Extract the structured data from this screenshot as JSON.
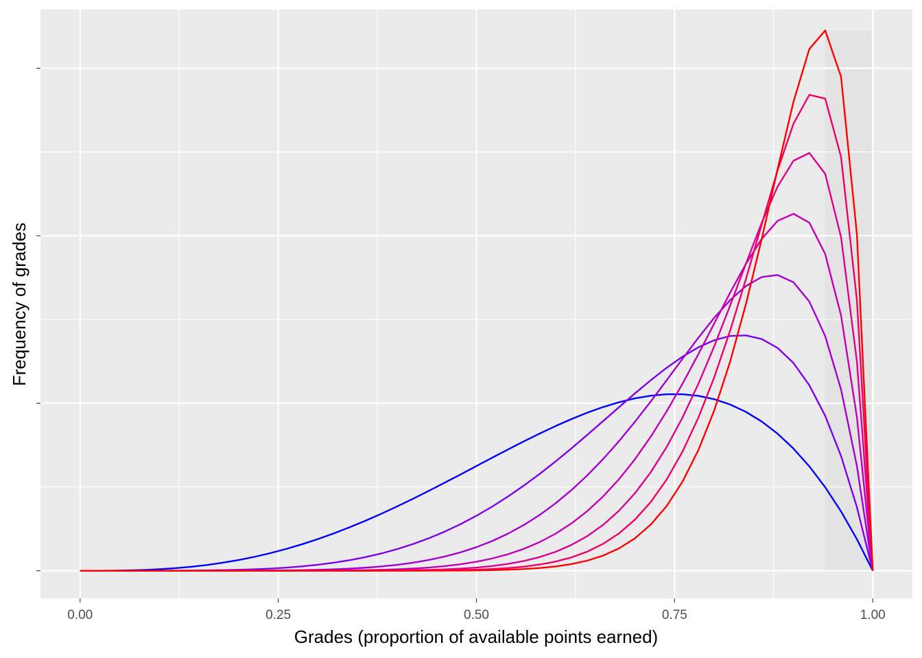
{
  "chart_data": {
    "type": "line",
    "title": "",
    "xlabel": "Grades (proportion of available points earned)",
    "ylabel": "Frequency of grades",
    "xlim": [
      -0.05,
      1.05
    ],
    "ylim": [
      -0.33,
      6.7
    ],
    "x_ticks": [
      0.0,
      0.25,
      0.5,
      0.75,
      1.0
    ],
    "x_tick_labels": [
      "0.00",
      "0.25",
      "0.50",
      "0.75",
      "1.00"
    ],
    "y_tick_labels_shown": false,
    "grid": true,
    "background": "#ebebeb",
    "highlight_band": {
      "x_start": 0.94,
      "x_end": 1.0,
      "color": "#e3e3e3"
    },
    "x_resolution": 0.02,
    "series": [
      {
        "distribution": "beta",
        "alpha": 4,
        "beta": 2,
        "color": "#0000ff"
      },
      {
        "distribution": "beta",
        "alpha": 6,
        "beta": 2,
        "color": "#7f00ea"
      },
      {
        "distribution": "beta",
        "alpha": 8,
        "beta": 2,
        "color": "#a400d2"
      },
      {
        "distribution": "beta",
        "alpha": 10,
        "beta": 2,
        "color": "#c100b5"
      },
      {
        "distribution": "beta",
        "alpha": 12,
        "beta": 2,
        "color": "#d90092"
      },
      {
        "distribution": "beta",
        "alpha": 14,
        "beta": 2,
        "color": "#ee0065"
      },
      {
        "distribution": "beta",
        "alpha": 16,
        "beta": 2,
        "color": "#ff0000"
      }
    ]
  }
}
